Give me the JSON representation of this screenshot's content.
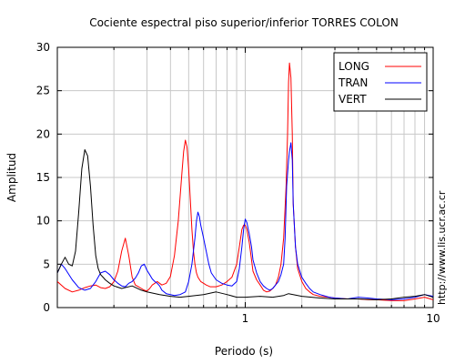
{
  "chart_data": {
    "type": "line",
    "title": "Cociente espectral piso superior/inferior  TORRES COLON",
    "xlabel": "Periodo (s)",
    "ylabel": "Amplitud",
    "xscale": "log",
    "xlim": [
      0.1,
      10
    ],
    "ylim": [
      0,
      30
    ],
    "xticks": [
      1,
      10
    ],
    "yticks": [
      0,
      5,
      10,
      15,
      20,
      25,
      30
    ],
    "grid": true,
    "legend_position": "top-right",
    "watermark": "http://www.lis.ucr.ac.cr",
    "series": [
      {
        "name": "LONG",
        "color": "#ff0000",
        "x": [
          0.1,
          0.11,
          0.12,
          0.13,
          0.14,
          0.15,
          0.16,
          0.17,
          0.18,
          0.19,
          0.2,
          0.21,
          0.22,
          0.23,
          0.24,
          0.25,
          0.26,
          0.27,
          0.28,
          0.29,
          0.3,
          0.31,
          0.32,
          0.33,
          0.34,
          0.35,
          0.36,
          0.38,
          0.4,
          0.42,
          0.44,
          0.46,
          0.47,
          0.48,
          0.49,
          0.5,
          0.51,
          0.52,
          0.53,
          0.54,
          0.55,
          0.56,
          0.58,
          0.6,
          0.62,
          0.65,
          0.7,
          0.75,
          0.8,
          0.85,
          0.9,
          0.93,
          0.96,
          0.98,
          1.0,
          1.02,
          1.05,
          1.08,
          1.1,
          1.15,
          1.2,
          1.25,
          1.3,
          1.35,
          1.4,
          1.45,
          1.5,
          1.55,
          1.6,
          1.65,
          1.68,
          1.7,
          1.72,
          1.75,
          1.78,
          1.8,
          1.85,
          1.9,
          2.0,
          2.1,
          2.2,
          2.3,
          2.5,
          2.8,
          3.0,
          3.5,
          4.0,
          4.5,
          5.0,
          6.0,
          7.0,
          8.0,
          9.0,
          10.0
        ],
        "values": [
          3.0,
          2.2,
          1.8,
          2.0,
          2.3,
          2.5,
          2.6,
          2.3,
          2.2,
          2.4,
          3.0,
          4.2,
          6.5,
          8.0,
          6.0,
          3.5,
          2.6,
          2.4,
          2.2,
          2.0,
          1.9,
          2.2,
          2.6,
          2.8,
          3.0,
          2.8,
          2.6,
          2.8,
          3.6,
          6.0,
          10.0,
          15.5,
          18.0,
          19.3,
          18.5,
          16.0,
          12.5,
          9.0,
          6.5,
          5.0,
          4.0,
          3.5,
          3.0,
          2.8,
          2.6,
          2.4,
          2.4,
          2.6,
          3.0,
          3.5,
          5.0,
          7.0,
          9.0,
          9.5,
          9.5,
          9.0,
          7.5,
          5.5,
          4.2,
          3.2,
          2.6,
          2.0,
          1.8,
          1.9,
          2.2,
          2.6,
          3.5,
          5.0,
          8.0,
          14.0,
          20.0,
          26.0,
          28.2,
          26.5,
          20.0,
          12.0,
          7.0,
          4.5,
          3.0,
          2.2,
          1.8,
          1.5,
          1.3,
          1.2,
          1.1,
          1.0,
          1.0,
          0.9,
          0.9,
          0.8,
          0.8,
          1.0,
          1.2,
          0.9
        ]
      },
      {
        "name": "TRAN",
        "color": "#0000ff",
        "x": [
          0.1,
          0.105,
          0.11,
          0.12,
          0.13,
          0.14,
          0.15,
          0.16,
          0.17,
          0.18,
          0.19,
          0.2,
          0.21,
          0.22,
          0.23,
          0.24,
          0.25,
          0.26,
          0.27,
          0.28,
          0.29,
          0.3,
          0.31,
          0.32,
          0.33,
          0.34,
          0.35,
          0.36,
          0.38,
          0.4,
          0.42,
          0.45,
          0.48,
          0.5,
          0.52,
          0.54,
          0.55,
          0.56,
          0.57,
          0.58,
          0.6,
          0.62,
          0.64,
          0.66,
          0.7,
          0.75,
          0.8,
          0.85,
          0.9,
          0.93,
          0.96,
          0.98,
          1.0,
          1.02,
          1.05,
          1.08,
          1.1,
          1.15,
          1.2,
          1.25,
          1.3,
          1.35,
          1.4,
          1.45,
          1.5,
          1.55,
          1.6,
          1.63,
          1.66,
          1.7,
          1.72,
          1.75,
          1.78,
          1.8,
          1.85,
          1.9,
          2.0,
          2.1,
          2.2,
          2.3,
          2.5,
          2.8,
          3.0,
          3.5,
          4.0,
          4.5,
          5.0,
          6.0,
          7.0,
          8.0,
          9.0,
          10.0
        ],
        "values": [
          4.0,
          5.0,
          4.5,
          3.2,
          2.3,
          2.0,
          2.2,
          3.0,
          4.0,
          4.2,
          3.8,
          3.2,
          2.8,
          2.5,
          2.4,
          2.8,
          3.0,
          3.4,
          4.0,
          4.8,
          5.0,
          4.3,
          3.8,
          3.3,
          3.0,
          2.8,
          2.5,
          2.0,
          1.6,
          1.5,
          1.4,
          1.5,
          1.8,
          3.0,
          5.0,
          8.0,
          10.0,
          11.0,
          10.5,
          9.5,
          8.0,
          6.5,
          5.0,
          4.0,
          3.2,
          2.8,
          2.6,
          2.5,
          3.0,
          4.5,
          7.0,
          9.0,
          10.2,
          9.8,
          8.5,
          7.0,
          5.5,
          4.0,
          3.0,
          2.5,
          2.2,
          2.0,
          2.2,
          2.6,
          3.0,
          3.8,
          5.0,
          8.0,
          14.0,
          17.0,
          18.0,
          19.0,
          17.0,
          12.0,
          7.0,
          5.0,
          3.5,
          2.8,
          2.2,
          1.8,
          1.5,
          1.2,
          1.1,
          1.0,
          1.2,
          1.1,
          1.0,
          0.9,
          1.0,
          1.2,
          1.5,
          1.3
        ]
      },
      {
        "name": "VERT",
        "color": "#000000",
        "x": [
          0.1,
          0.105,
          0.11,
          0.115,
          0.12,
          0.125,
          0.13,
          0.135,
          0.14,
          0.145,
          0.15,
          0.155,
          0.16,
          0.165,
          0.17,
          0.175,
          0.18,
          0.19,
          0.2,
          0.22,
          0.25,
          0.28,
          0.3,
          0.35,
          0.4,
          0.45,
          0.5,
          0.6,
          0.7,
          0.8,
          0.9,
          1.0,
          1.2,
          1.4,
          1.6,
          1.7,
          1.8,
          2.0,
          2.5,
          3.0,
          4.0,
          5.0,
          6.0,
          7.0,
          8.0,
          9.0,
          10.0
        ],
        "values": [
          4.0,
          5.0,
          5.8,
          5.0,
          4.8,
          6.5,
          11.0,
          16.0,
          18.2,
          17.5,
          14.0,
          9.5,
          6.0,
          4.5,
          3.8,
          3.5,
          3.2,
          2.8,
          2.5,
          2.2,
          2.5,
          2.0,
          1.8,
          1.5,
          1.3,
          1.2,
          1.3,
          1.5,
          1.8,
          1.5,
          1.2,
          1.2,
          1.3,
          1.2,
          1.4,
          1.6,
          1.5,
          1.3,
          1.1,
          1.0,
          1.0,
          0.9,
          1.0,
          1.2,
          1.3,
          1.5,
          1.2
        ]
      }
    ]
  }
}
